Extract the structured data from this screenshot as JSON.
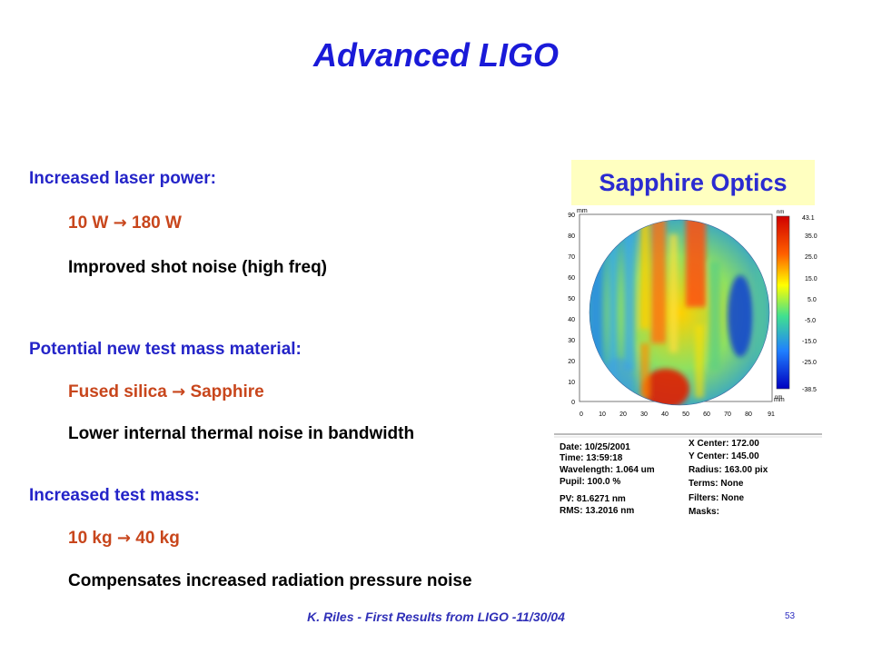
{
  "slide": {
    "title": "Advanced LIGO",
    "sections": [
      {
        "heading": "Increased laser power:",
        "from": "10 W",
        "arrow": "→",
        "to": "180 W",
        "detail": "Improved shot noise (high freq)"
      },
      {
        "heading": "Potential new test mass material:",
        "from": "Fused silica",
        "arrow": "→",
        "to": "Sapphire",
        "detail": "Lower internal thermal noise in bandwidth"
      },
      {
        "heading": "Increased test mass:",
        "from": "10 kg",
        "arrow": "→",
        "to": "40 kg",
        "detail": "Compensates increased radiation pressure noise"
      }
    ],
    "figure_label": "Sapphire Optics",
    "footer": "K. Riles - First Results from LIGO -11/30/04",
    "page_number": "53"
  },
  "surface_map": {
    "axis_unit": "mm",
    "y_ticks": [
      "90",
      "80",
      "70",
      "60",
      "50",
      "40",
      "30",
      "20",
      "10",
      "0"
    ],
    "x_ticks": [
      "0",
      "10",
      "20",
      "30",
      "40",
      "50",
      "60",
      "70",
      "80",
      "91"
    ],
    "colorbar_unit": "nm",
    "colorbar_ticks": [
      "43.1",
      "35.0",
      "25.0",
      "15.0",
      "5.0",
      "-5.0",
      "-15.0",
      "-25.0",
      "-38.5"
    ],
    "colorbar_bottom_unit": "nm",
    "info_left": [
      "Date:  10/25/2001",
      "Time:  13:59:18",
      "Wavelength: 1.064 um",
      "Pupil: 100.0 %",
      "PV: 81.6271 nm",
      "RMS: 13.2016 nm"
    ],
    "info_right": [
      "X Center: 172.00",
      "Y Center: 145.00",
      "Radius: 163.00 pix",
      "Terms: None",
      "Filters: None",
      "Masks:"
    ],
    "colors": {
      "high": "#d00000",
      "mid": "#ffff00",
      "low": "#0000c8"
    }
  }
}
